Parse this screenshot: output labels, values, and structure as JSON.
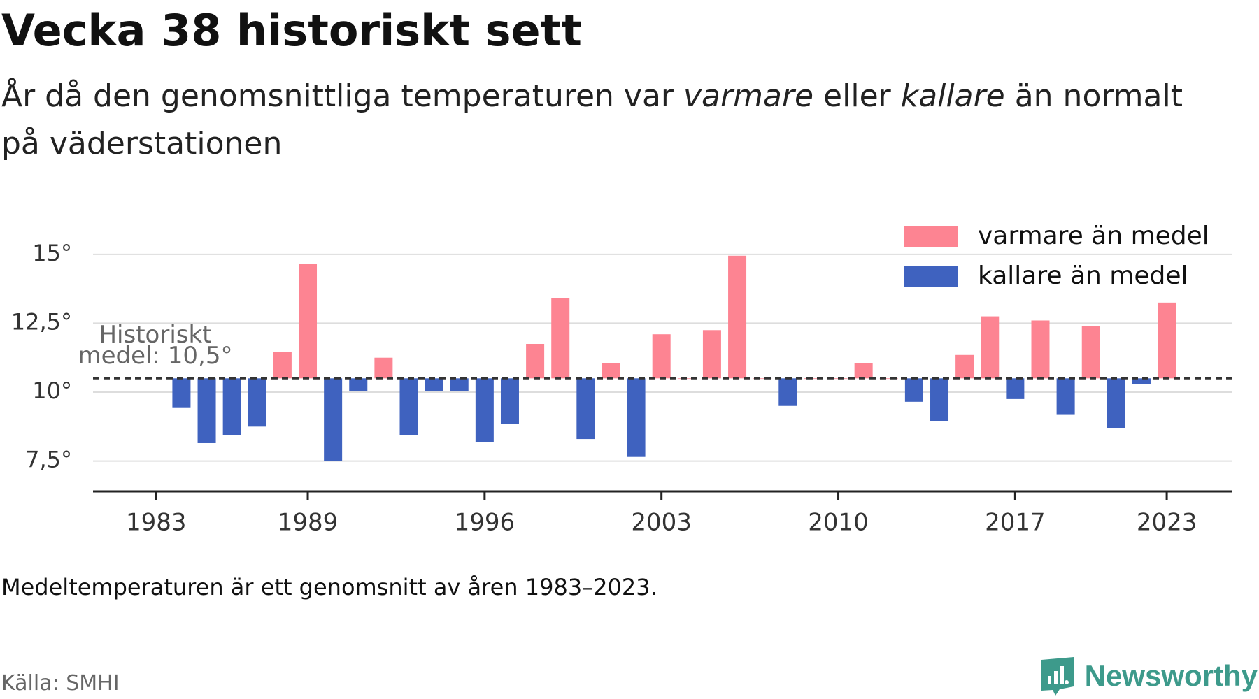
{
  "header": {
    "title": "Vecka 38 historiskt sett",
    "subtitle_parts": [
      "År då den genomsnittliga temperaturen var ",
      "varmare",
      " eller ",
      "kallare",
      " än normalt på väderstationen"
    ]
  },
  "chart_data": {
    "type": "bar",
    "baseline": 10.5,
    "years": [
      1984,
      1985,
      1986,
      1987,
      1988,
      1989,
      1990,
      1991,
      1992,
      1993,
      1994,
      1995,
      1996,
      1997,
      1998,
      1999,
      2000,
      2001,
      2002,
      2003,
      2004,
      2005,
      2006,
      2007,
      2008,
      2009,
      2010,
      2011,
      2012,
      2013,
      2014,
      2015,
      2016,
      2017,
      2018,
      2019,
      2020,
      2021,
      2022,
      2023
    ],
    "values": [
      9.45,
      8.15,
      8.45,
      8.75,
      11.45,
      14.65,
      7.5,
      10.05,
      11.25,
      8.45,
      10.05,
      10.05,
      8.2,
      8.85,
      11.75,
      13.4,
      8.3,
      11.05,
      7.65,
      12.1,
      10.5,
      12.25,
      14.95,
      10.5,
      9.5,
      10.5,
      10.5,
      11.05,
      10.5,
      9.65,
      8.95,
      11.35,
      12.75,
      9.75,
      12.6,
      9.2,
      12.4,
      8.7,
      10.3,
      13.25
    ],
    "y_ticks": [
      7.5,
      10,
      12.5,
      15
    ],
    "y_tick_labels": [
      "7,5°",
      "10°",
      "12,5°",
      "15°"
    ],
    "ylim": [
      6.4,
      15.3
    ],
    "x_ticks": [
      1983,
      1989,
      1996,
      2003,
      2010,
      2017,
      2023
    ],
    "x_tick_labels": [
      "1983",
      "1989",
      "1996",
      "2003",
      "2010",
      "2017",
      "2023"
    ],
    "xlim": [
      1980.5,
      2025.6
    ],
    "baseline_label": [
      "Historiskt",
      "medel: 10,5°"
    ],
    "legend": {
      "position": "top-right",
      "items": [
        {
          "label": "varmare än medel",
          "color": "#fd8492"
        },
        {
          "label": "kallare än medel",
          "color": "#3f62bf"
        }
      ]
    },
    "grid": true,
    "colors": {
      "warm": "#fd8492",
      "cold": "#3f62bf",
      "grid": "#dddddd",
      "axis": "#222222",
      "baseline": "#333333"
    }
  },
  "footer": {
    "note": "Medeltemperaturen är ett genomsnitt av åren 1983–2023.",
    "source": "Källa: SMHI",
    "brand": "Newsworthy",
    "brand_color": "#3d9a8b"
  }
}
